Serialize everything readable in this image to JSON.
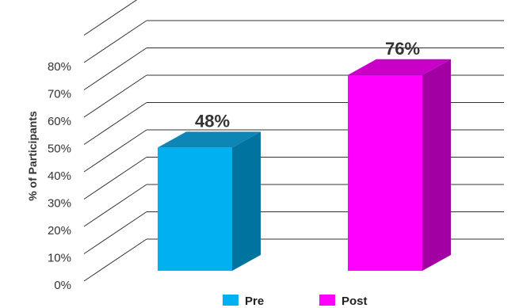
{
  "chart_data": {
    "type": "bar",
    "categories": [
      "Pre",
      "Post"
    ],
    "values": [
      48,
      76
    ],
    "value_labels": [
      "48%",
      "76%"
    ],
    "ylabel": "% of Participants",
    "ylim": [
      0,
      80
    ],
    "yticks": [
      "0%",
      "10%",
      "20%",
      "30%",
      "40%",
      "50%",
      "60%",
      "70%",
      "80%"
    ],
    "grid": true,
    "legend_position": "bottom",
    "style": "3d",
    "colors": {
      "Pre": {
        "front": "#00b0f0",
        "top": "#0d86b5",
        "side": "#00749f"
      },
      "Post": {
        "front": "#ff00ff",
        "top": "#c800c8",
        "side": "#a300a3"
      }
    }
  }
}
